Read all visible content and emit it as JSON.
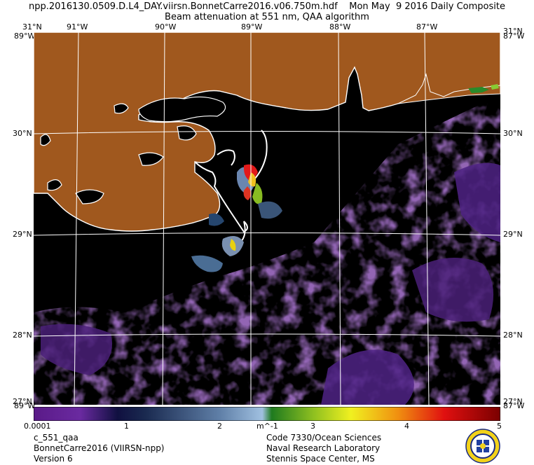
{
  "header": {
    "line1": "npp.2016130.0509.D.L4_DAY.viirsn.BonnetCarre2016.v06.750m.hdf    Mon May  9 2016 Daily Composite",
    "line2": "Beam attenuation at 551 nm, QAA algorithm"
  },
  "map": {
    "lon_labels": [
      "91°W",
      "90°W",
      "89°W",
      "88°W",
      "87°W"
    ],
    "lat_labels": [
      "31°N",
      "30°N",
      "29°N",
      "28°N",
      "27°N"
    ],
    "corner_top_left": "31°N",
    "corner_top_right": "31°N",
    "corner_bottom_left": "27°N",
    "corner_bottom_right": "27°N",
    "edge_top_left": "89°W",
    "edge_top_right": "87°W",
    "edge_bottom_left": "89°W",
    "edge_bottom_right": "87°W",
    "colors": {
      "land": "#a0581e",
      "water": "#000000",
      "grid": "#ffffff",
      "coast": "#ffffff"
    }
  },
  "colorbar": {
    "ticks": [
      "0.0001",
      "1",
      "2",
      "m^-1",
      "3",
      "4",
      "5"
    ]
  },
  "footer": {
    "left": [
      "c_551_qaa",
      "BonnetCarre2016 (VIIRSN-npp)",
      "Version 6"
    ],
    "right": [
      "Code 7330/Ocean Sciences",
      "Naval Research Laboratory",
      "Stennis Space Center, MS"
    ]
  }
}
